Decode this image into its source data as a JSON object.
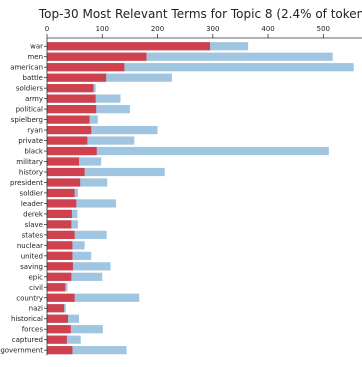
{
  "chart_data": {
    "type": "bar",
    "orientation": "horizontal",
    "stacked": "overlay",
    "title": "Top-30 Most Relevant Terms for Topic 8 (2.4% of tokens)",
    "xlim": [
      0,
      570
    ],
    "xticks": [
      0,
      100,
      200,
      300,
      400,
      500
    ],
    "axis_position": "top",
    "grid": false,
    "colors": {
      "topic": "#d0414e",
      "overall": "#9fc5e1"
    },
    "categories": [
      "war",
      "men",
      "american",
      "battle",
      "soldiers",
      "army",
      "political",
      "spielberg",
      "ryan",
      "private",
      "black",
      "military",
      "history",
      "president",
      "soldier",
      "leader",
      "derek",
      "slave",
      "states",
      "nuclear",
      "united",
      "saving",
      "epic",
      "civil",
      "country",
      "nazi",
      "historical",
      "forces",
      "captured",
      "government"
    ],
    "series": [
      {
        "values": [
          295,
          180,
          140,
          107,
          84,
          88,
          89,
          77,
          80,
          73,
          90,
          58,
          68,
          60,
          50,
          53,
          45,
          44,
          50,
          46,
          46,
          47,
          44,
          33,
          50,
          31,
          38,
          43,
          36,
          46
        ]
      },
      {
        "values": [
          364,
          517,
          555,
          226,
          88,
          133,
          150,
          92,
          200,
          158,
          510,
          98,
          213,
          109,
          56,
          125,
          55,
          56,
          108,
          68,
          80,
          115,
          100,
          37,
          167,
          34,
          58,
          101,
          61,
          144
        ]
      }
    ]
  }
}
